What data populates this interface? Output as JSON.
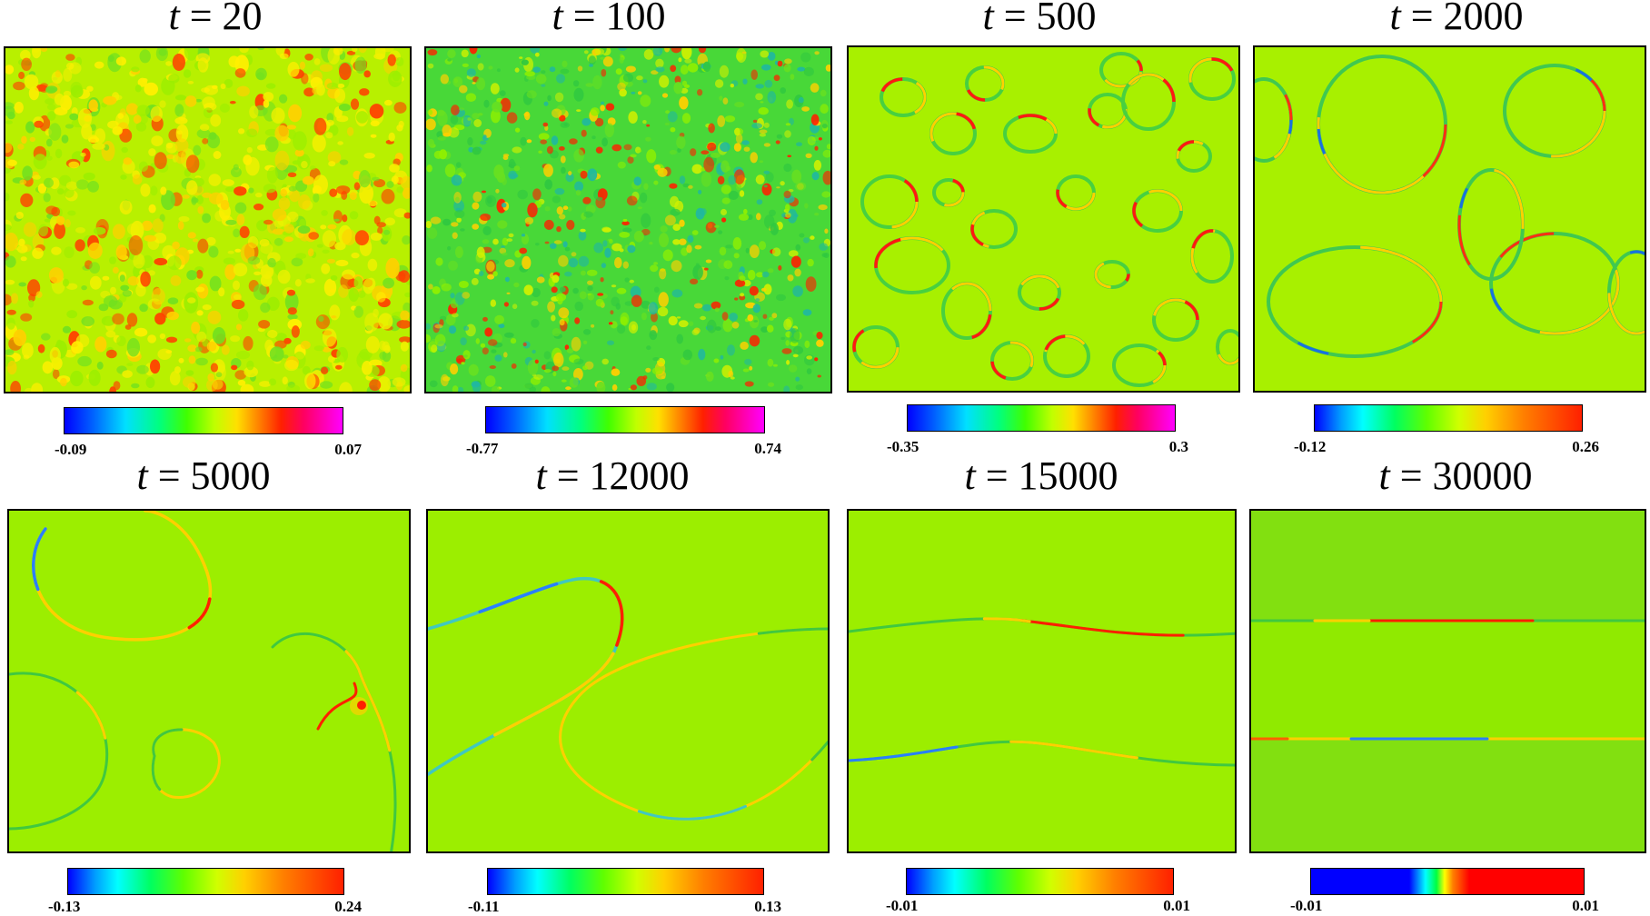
{
  "panels": [
    {
      "t_symbol": "t",
      "eq": " = ",
      "t_value": "20",
      "cbar_min": "-0.09",
      "cbar_max": "0.07",
      "colormap": "rainbow_magenta"
    },
    {
      "t_symbol": "t",
      "eq": " = ",
      "t_value": "100",
      "cbar_min": "-0.77",
      "cbar_max": "0.74",
      "colormap": "rainbow_magenta"
    },
    {
      "t_symbol": "t",
      "eq": " = ",
      "t_value": "500",
      "cbar_min": "-0.35",
      "cbar_max": "0.3",
      "colormap": "rainbow_magenta"
    },
    {
      "t_symbol": "t",
      "eq": " = ",
      "t_value": "2000",
      "cbar_min": "-0.12",
      "cbar_max": "0.26",
      "colormap": "rainbow"
    },
    {
      "t_symbol": "t",
      "eq": " = ",
      "t_value": "5000",
      "cbar_min": "-0.13",
      "cbar_max": "0.24",
      "colormap": "rainbow"
    },
    {
      "t_symbol": "t",
      "eq": " = ",
      "t_value": "12000",
      "cbar_min": "-0.11",
      "cbar_max": "0.13",
      "colormap": "rainbow"
    },
    {
      "t_symbol": "t",
      "eq": " = ",
      "t_value": "15000",
      "cbar_min": "-0.01",
      "cbar_max": "0.01",
      "colormap": "rainbow"
    },
    {
      "t_symbol": "t",
      "eq": " = ",
      "t_value": "30000",
      "cbar_min": "-0.01",
      "cbar_max": "0.01",
      "colormap": "rainbow_narrow"
    }
  ],
  "colors": {
    "field_background": "#8fe600",
    "field_background_late": "#82e010",
    "positive": "#ff2a1a",
    "negative": "#2a7fff"
  }
}
